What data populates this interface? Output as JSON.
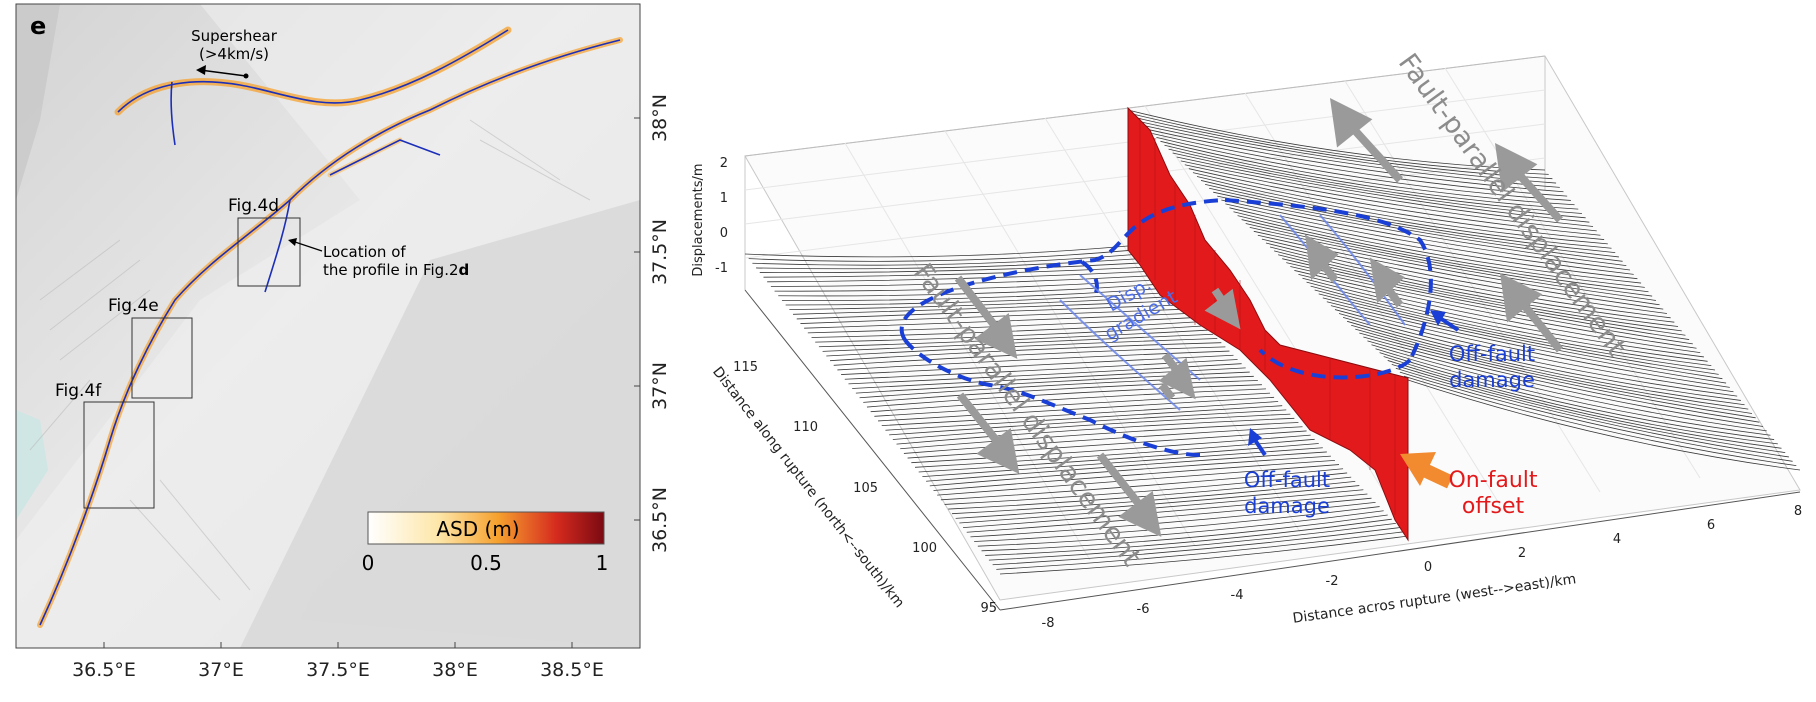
{
  "panel_label": "e",
  "map": {
    "supershear": [
      "Supershear",
      "(>4km/s)"
    ],
    "location_note": [
      "Location of",
      "the profile in Fig.2",
      "d"
    ],
    "boxes": [
      "Fig.4d",
      "Fig.4e",
      "Fig.4f"
    ],
    "lat_ticks": [
      "38°N",
      "37.5°N",
      "37°N",
      "36.5°N"
    ],
    "lon_ticks": [
      "36.5°E",
      "37°E",
      "37.5°E",
      "38°E",
      "38.5°E"
    ],
    "colorbar": {
      "title": "ASD (m)",
      "ticks": [
        "0",
        "0.5",
        "1"
      ],
      "colors": [
        "#ffffff",
        "#fde6a8",
        "#f6a12e",
        "#d52a1e",
        "#7a0a12"
      ]
    }
  },
  "surface": {
    "z_label": "Displacements/m",
    "z_ticks": [
      "2",
      "1",
      "0",
      "-1"
    ],
    "y_label": "Distance along rupture (north<--south)/km",
    "y_ticks": [
      "115",
      "110",
      "105",
      "100",
      "95"
    ],
    "x_label": "Distance acros rupture (west-->east)/km",
    "x_ticks": [
      "-8",
      "-6",
      "-4",
      "-2",
      "0",
      "2",
      "4",
      "6",
      "8"
    ],
    "annotations": {
      "fault_parallel_right": "Fault-parallel displacement",
      "fault_parallel_left": "Fault-parallel displacement",
      "disp_gradient": [
        "Disp.",
        "gradient"
      ],
      "off_fault_right": [
        "Off-fault",
        "damage"
      ],
      "off_fault_left": [
        "Off-fault",
        "damage"
      ],
      "on_fault": [
        "On-fault",
        "offset"
      ]
    },
    "colors": {
      "offset_wall": "#e31a1c",
      "annotation_blue": "#1a3fd6",
      "gradient_blue": "#4d6ee8",
      "arrow_orange": "#f28a30",
      "arrow_gray": "#9a9a9a"
    }
  }
}
